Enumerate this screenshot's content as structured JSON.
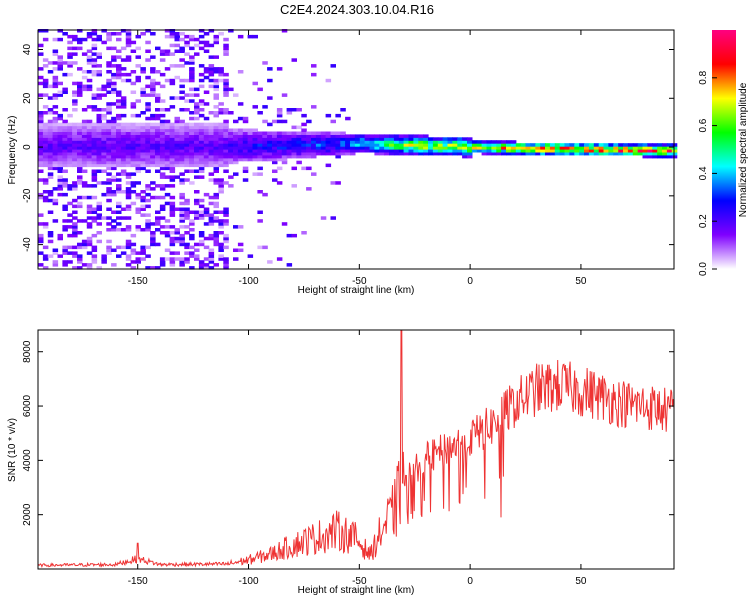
{
  "chart_data": [
    {
      "type": "heatmap",
      "title": "C2E4.2024.303.10.04.R16",
      "xlabel": "Height of straight line (km)",
      "ylabel": "Frequency (Hz)",
      "xlim": [
        -195,
        92
      ],
      "ylim": [
        -50,
        48
      ],
      "x_ticks": [
        -150,
        -100,
        -50,
        0,
        50
      ],
      "x_tick_labels": [
        "-150",
        "-100",
        "-50",
        "0",
        "50"
      ],
      "y_ticks": [
        -40,
        -20,
        0,
        20,
        40
      ],
      "y_tick_labels": [
        "-40",
        "-20",
        "0",
        "20",
        "40"
      ],
      "colorbar": {
        "label": "Normalized spectral amplitude",
        "range": [
          0,
          1
        ],
        "ticks": [
          0.0,
          0.2,
          0.4,
          0.6,
          0.8
        ],
        "tick_labels": [
          "0.0",
          "0.2",
          "0.4",
          "0.6",
          "0.8"
        ],
        "colormap": [
          "#ffffff",
          "#7f00ff",
          "#0000ff",
          "#00ffff",
          "#00ff00",
          "#ffff00",
          "#ff0000",
          "#ff0080"
        ]
      },
      "ridge_center_hz": [
        {
          "x": -195,
          "y": 0
        },
        {
          "x": -100,
          "y": 0
        },
        {
          "x": -50,
          "y": 1
        },
        {
          "x": -20,
          "y": 0
        },
        {
          "x": 20,
          "y": -1
        },
        {
          "x": 92,
          "y": -2
        }
      ]
    },
    {
      "type": "line",
      "xlabel": "Height of straight line (km)",
      "ylabel": "SNR (10 * v/v)",
      "xlim": [
        -195,
        92
      ],
      "ylim": [
        0,
        8800
      ],
      "x_ticks": [
        -150,
        -100,
        -50,
        0,
        50
      ],
      "x_tick_labels": [
        "-150",
        "-100",
        "-50",
        "0",
        "50"
      ],
      "y_ticks": [
        2000,
        4000,
        6000,
        8000
      ],
      "y_tick_labels": [
        "2000",
        "4000",
        "6000",
        "8000"
      ],
      "color": "#ee3333",
      "envelope": [
        {
          "x": -195,
          "y": 150
        },
        {
          "x": -160,
          "y": 180
        },
        {
          "x": -150,
          "y": 420
        },
        {
          "x": -140,
          "y": 180
        },
        {
          "x": -110,
          "y": 200
        },
        {
          "x": -100,
          "y": 380
        },
        {
          "x": -90,
          "y": 620
        },
        {
          "x": -80,
          "y": 1000
        },
        {
          "x": -70,
          "y": 1300
        },
        {
          "x": -60,
          "y": 1600
        },
        {
          "x": -52,
          "y": 1300
        },
        {
          "x": -45,
          "y": 600
        },
        {
          "x": -40,
          "y": 1600
        },
        {
          "x": -35,
          "y": 2300
        },
        {
          "x": -31,
          "y": 3300
        },
        {
          "x": -25,
          "y": 3800
        },
        {
          "x": -20,
          "y": 4200
        },
        {
          "x": -10,
          "y": 4600
        },
        {
          "x": 0,
          "y": 5000
        },
        {
          "x": 10,
          "y": 5500
        },
        {
          "x": 20,
          "y": 6300
        },
        {
          "x": 30,
          "y": 6850
        },
        {
          "x": 40,
          "y": 7000
        },
        {
          "x": 55,
          "y": 6700
        },
        {
          "x": 70,
          "y": 6300
        },
        {
          "x": 80,
          "y": 6200
        },
        {
          "x": 92,
          "y": 6000
        }
      ],
      "spikes": [
        {
          "x": -31,
          "y": 8800
        },
        {
          "x": -150,
          "y": 950
        },
        {
          "x": 14,
          "y": 1900
        },
        {
          "x": -22,
          "y": 2000
        }
      ]
    }
  ]
}
